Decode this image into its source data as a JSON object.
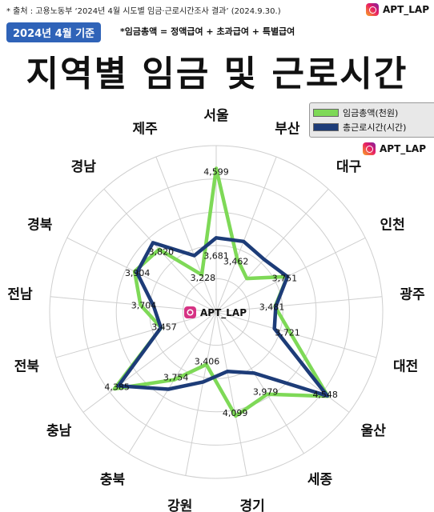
{
  "header": {
    "source": "* 출처 : 고용노동부 ‘2024년 4월 시도별 임금·근로시간조사 결과’ (2024.9.30.)",
    "brand": "APT_LAP",
    "date_badge": "2024년 4월 기준",
    "formula": "*임금총액 = 정액급여 + 초과급여 + 특별급여",
    "title": "지역별 임금 및 근로시간"
  },
  "watermark": "APT_LAP",
  "colors": {
    "wage": "#7ed957",
    "hours": "#1d3c78",
    "grid": "#cfcfcf",
    "badge": "#2f63b8"
  },
  "legend": [
    {
      "label": "임금총액(천원)",
      "color": "#7ed957"
    },
    {
      "label": "총근로시간(시간)",
      "color": "#1d3c78"
    }
  ],
  "chart_data": {
    "type": "radar",
    "categories": [
      "서울",
      "부산",
      "대구",
      "인천",
      "광주",
      "대전",
      "울산",
      "세종",
      "경기",
      "강원",
      "충북",
      "충남",
      "전북",
      "전남",
      "경북",
      "경남",
      "제주"
    ],
    "series": [
      {
        "name": "임금총액(천원)",
        "values": [
          4599,
          3462,
          3300,
          3751,
          3481,
          3721,
          4548,
          3979,
          4099,
          3406,
          3754,
          4385,
          3457,
          3704,
          3904,
          3820,
          3228
        ],
        "labels": [
          "4,599",
          "3,462",
          "",
          "3,751",
          "3,481",
          "3,721",
          "4,548",
          "3,979",
          "4,099",
          "3,406",
          "3,754",
          "4,385",
          "3,457",
          "3,704",
          "3,904",
          "3,820",
          "3,228"
        ]
      },
      {
        "name": "총근로시간(시간)",
        "values": [
          3681,
          3700,
          3640,
          3750,
          3490,
          3500,
          4540,
          3650,
          3500,
          3640,
          3900,
          4320,
          3460,
          3530,
          3870,
          3940,
          3500
        ],
        "labels": [
          "3,681"
        ]
      }
    ]
  }
}
